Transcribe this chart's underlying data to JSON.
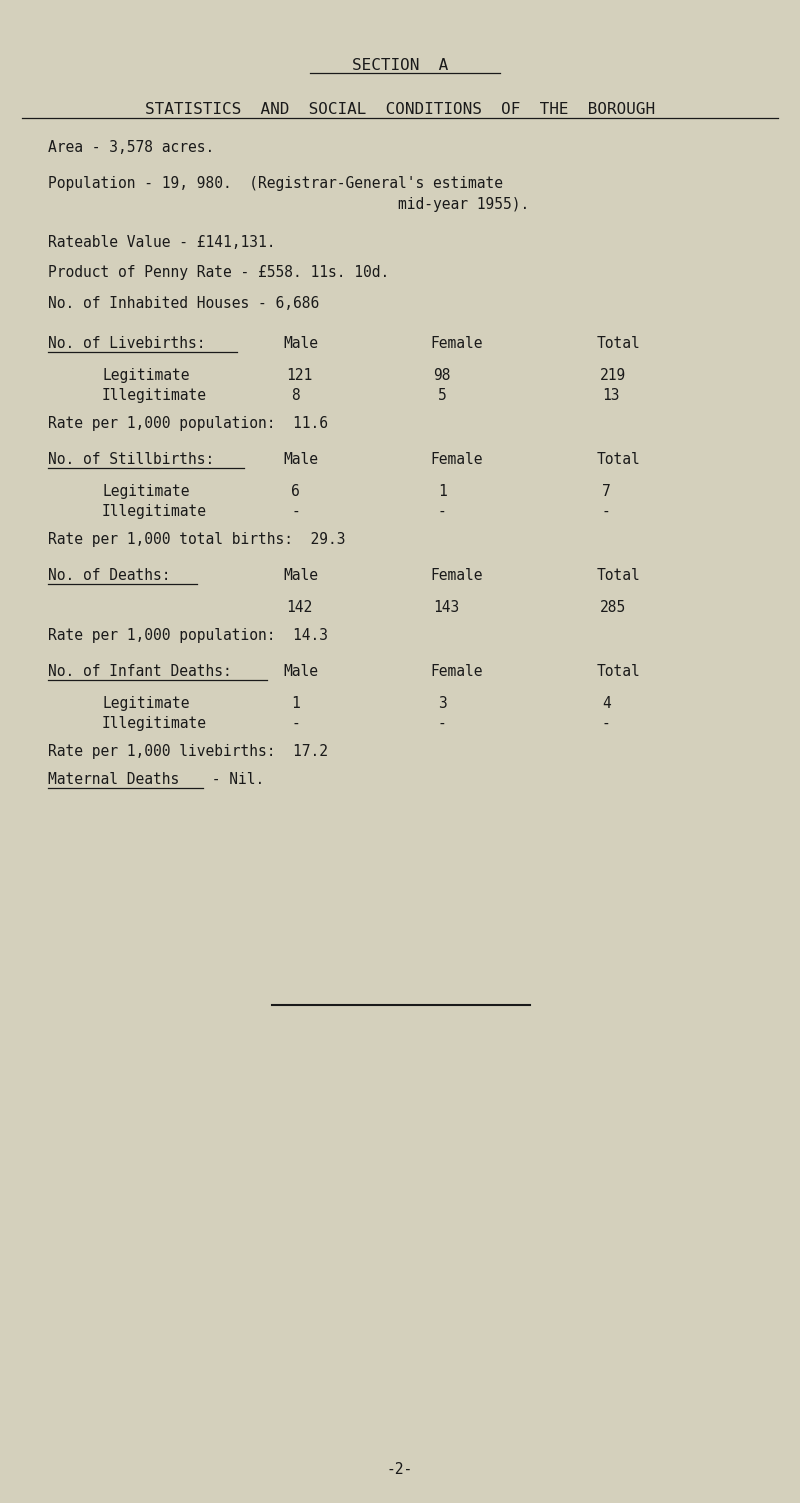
{
  "bg_color": "#d4d0bc",
  "text_color": "#1a1a1a",
  "section_title": "SECTION  A",
  "main_title": "STATISTICS  AND  SOCIAL  CONDITIONS  OF  THE  BOROUGH",
  "area": "Area - 3,578 acres.",
  "population_line1": "Population - 19, 980.  (Registrar-General's estimate",
  "population_line2": "                                        mid-year 1955).",
  "rateable": "Rateable Value - £141,131.",
  "penny_rate": "Product of Penny Rate - £558. 11s. 10d.",
  "houses": "No. of Inhabited Houses - 6,686",
  "livebirths_header": "No. of Livebirths:",
  "stillbirths_header": "No. of Stillbirths:",
  "deaths_header": "No. of Deaths:",
  "infant_header": "No. of Infant Deaths:",
  "col_male": "Male",
  "col_female": "Female",
  "col_total": "Total",
  "legitimate": "Legitimate",
  "illegitimate": "Illegitimate",
  "lb_leg": [
    "121",
    "98",
    "219"
  ],
  "lb_illeg": [
    "8",
    "5",
    "13"
  ],
  "lb_rate": "Rate per 1,000 population:  11.6",
  "sb_leg": [
    "6",
    "1",
    "7"
  ],
  "sb_illeg": [
    "-",
    "-",
    "-"
  ],
  "sb_rate": "Rate per 1,000 total births:  29.3",
  "d_vals": [
    "142",
    "143",
    "285"
  ],
  "d_rate": "Rate per 1,000 population:  14.3",
  "id_leg": [
    "1",
    "3",
    "4"
  ],
  "id_illeg": [
    "-",
    "-",
    "-"
  ],
  "id_rate": "Rate per 1,000 livebirths:  17.2",
  "maternal_label": "Maternal Deaths",
  "maternal_value": " - Nil.",
  "page_num": "-2-",
  "font_family": "DejaVu Sans Mono",
  "font_size": 10.5,
  "title_font_size": 11.5
}
